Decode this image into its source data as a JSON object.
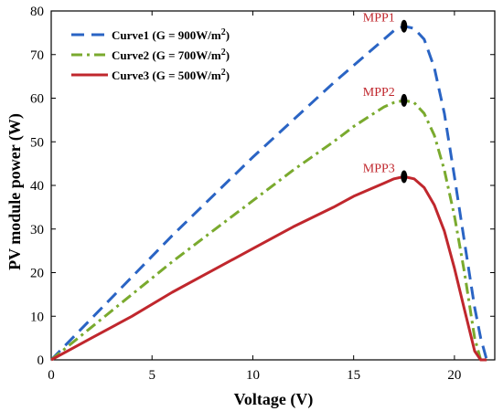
{
  "chart_data": {
    "type": "line",
    "xlabel": "Voltage (V)",
    "ylabel": "PV module power (W)",
    "xlim": [
      0,
      22
    ],
    "ylim": [
      0,
      80
    ],
    "xticks": [
      0,
      5,
      10,
      15,
      20
    ],
    "yticks": [
      0,
      10,
      20,
      30,
      40,
      50,
      60,
      70,
      80
    ],
    "grid": false,
    "legend_position": "top-left",
    "series": [
      {
        "name": "Curve1 (G = 900W/m",
        "name_sup": "2",
        "name_tail": ")",
        "color": "#2a64c4",
        "dash": "dashed",
        "x": [
          0,
          2,
          4,
          6,
          8,
          10,
          12,
          14,
          15,
          16,
          16.5,
          17,
          17.5,
          18,
          18.5,
          19,
          19.5,
          20,
          20.5,
          21,
          21.3,
          21.6,
          21.8
        ],
        "y": [
          0,
          9.5,
          19,
          28.5,
          37.5,
          46.5,
          55,
          63.5,
          67.5,
          71.5,
          73.5,
          75.5,
          76.5,
          76,
          73.5,
          67,
          56.5,
          42,
          27,
          12,
          5,
          0,
          0
        ]
      },
      {
        "name": "Curve2 (G = 700W/m",
        "name_sup": "2",
        "name_tail": ")",
        "color": "#7aaa2e",
        "dash": "dashdot",
        "x": [
          0,
          2,
          4,
          6,
          8,
          10,
          12,
          14,
          15,
          16,
          16.5,
          17,
          17.5,
          18,
          18.5,
          19,
          19.5,
          20,
          20.5,
          21,
          21.3,
          21.6
        ],
        "y": [
          0,
          7.5,
          15,
          22.5,
          29.5,
          36.5,
          43.5,
          50,
          53.5,
          56.5,
          58,
          59,
          59.5,
          59,
          56.5,
          51.5,
          43.5,
          33,
          20,
          5,
          0,
          0
        ]
      },
      {
        "name": "Curve3 (G = 500W/m",
        "name_sup": "2",
        "name_tail": ")",
        "color": "#c0272d",
        "dash": "solid",
        "x": [
          0,
          2,
          4,
          6,
          8,
          10,
          12,
          14,
          15,
          16,
          16.5,
          17,
          17.5,
          18,
          18.5,
          19,
          19.5,
          20,
          20.5,
          21,
          21.3,
          21.6
        ],
        "y": [
          0,
          5,
          10,
          15.5,
          20.5,
          25.5,
          30.5,
          35,
          37.5,
          39.5,
          40.5,
          41.5,
          42,
          41.5,
          39.5,
          35.5,
          29.5,
          21,
          11.5,
          2,
          0,
          0
        ]
      }
    ],
    "annotations": [
      {
        "label": "MPP1",
        "x": 17.5,
        "y": 76.5,
        "series": 0
      },
      {
        "label": "MPP2",
        "x": 17.5,
        "y": 59.5,
        "series": 1
      },
      {
        "label": "MPP3",
        "x": 17.5,
        "y": 42,
        "series": 2
      }
    ]
  }
}
